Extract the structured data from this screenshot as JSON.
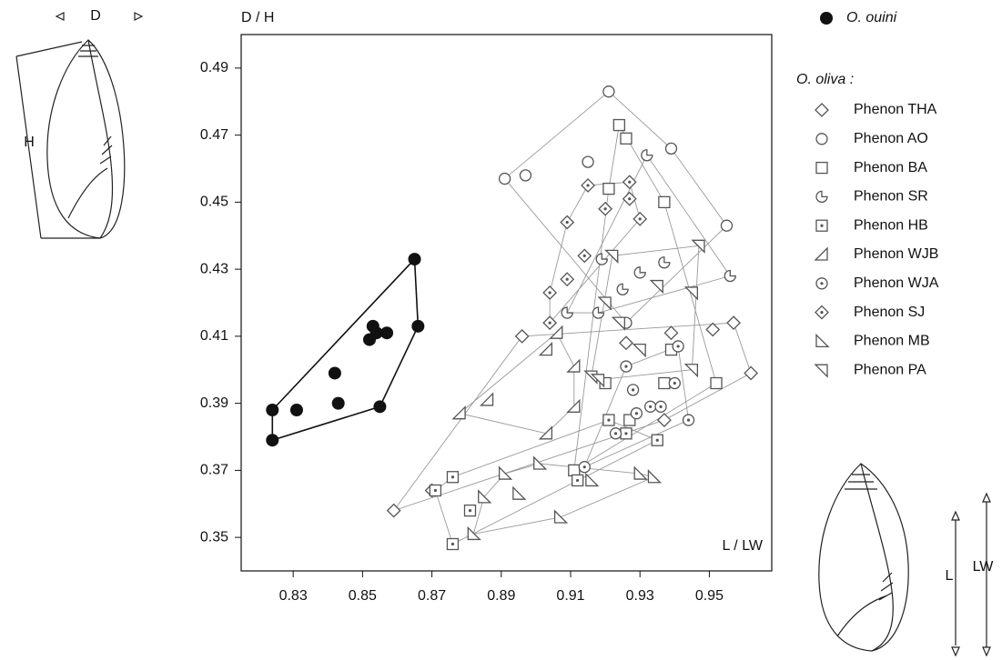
{
  "chart_data": {
    "type": "scatter",
    "y_label": "D / H",
    "x_label": "L / LW",
    "xlim": [
      0.815,
      0.968
    ],
    "ylim": [
      0.34,
      0.5
    ],
    "xticks": [
      0.83,
      0.85,
      0.87,
      0.89,
      0.91,
      0.93,
      0.95
    ],
    "yticks": [
      0.35,
      0.37,
      0.39,
      0.41,
      0.43,
      0.45,
      0.47,
      0.49
    ],
    "legend_group": "O. oliva :",
    "shell_labels": [
      "D",
      "H",
      "L",
      "LW"
    ],
    "series": [
      {
        "name": "O. ouini",
        "marker": "filled-circle",
        "color": "#111111",
        "x": [
          0.824,
          0.824,
          0.831,
          0.842,
          0.843,
          0.852,
          0.853,
          0.854,
          0.857,
          0.855,
          0.865,
          0.866
        ],
        "y": [
          0.388,
          0.379,
          0.388,
          0.399,
          0.39,
          0.409,
          0.413,
          0.411,
          0.411,
          0.389,
          0.433,
          0.413
        ]
      },
      {
        "name": "Phenon THA",
        "marker": "diamond",
        "color": "#555555",
        "x": [
          0.859,
          0.87,
          0.896,
          0.939,
          0.951,
          0.957,
          0.962,
          0.937,
          0.926
        ],
        "y": [
          0.358,
          0.364,
          0.41,
          0.411,
          0.412,
          0.414,
          0.399,
          0.385,
          0.408
        ]
      },
      {
        "name": "Phenon AO",
        "marker": "circle",
        "color": "#555555",
        "x": [
          0.891,
          0.897,
          0.921,
          0.915,
          0.939,
          0.955,
          0.926
        ],
        "y": [
          0.457,
          0.458,
          0.483,
          0.462,
          0.466,
          0.443,
          0.414
        ]
      },
      {
        "name": "Phenon BA",
        "marker": "square",
        "color": "#555555",
        "x": [
          0.924,
          0.926,
          0.921,
          0.937,
          0.939,
          0.952,
          0.937,
          0.92,
          0.927,
          0.911
        ],
        "y": [
          0.473,
          0.469,
          0.454,
          0.45,
          0.406,
          0.396,
          0.396,
          0.396,
          0.385,
          0.37
        ]
      },
      {
        "name": "Phenon SR",
        "marker": "pie",
        "color": "#555555",
        "x": [
          0.932,
          0.93,
          0.937,
          0.956,
          0.925,
          0.919,
          0.909,
          0.918
        ],
        "y": [
          0.464,
          0.429,
          0.432,
          0.428,
          0.424,
          0.433,
          0.417,
          0.417
        ]
      },
      {
        "name": "Phenon HB",
        "marker": "dot-square",
        "color": "#555555",
        "x": [
          0.876,
          0.871,
          0.876,
          0.881,
          0.912,
          0.921,
          0.926,
          0.935
        ],
        "y": [
          0.368,
          0.364,
          0.348,
          0.358,
          0.367,
          0.385,
          0.381,
          0.379
        ]
      },
      {
        "name": "Phenon WJB",
        "marker": "tri-wjb",
        "color": "#555555",
        "x": [
          0.878,
          0.886,
          0.903,
          0.903,
          0.906,
          0.911,
          0.911
        ],
        "y": [
          0.387,
          0.391,
          0.381,
          0.406,
          0.411,
          0.401,
          0.389
        ]
      },
      {
        "name": "Phenon WJA",
        "marker": "dot-circle",
        "color": "#555555",
        "x": [
          0.914,
          0.923,
          0.929,
          0.928,
          0.933,
          0.936,
          0.94,
          0.941,
          0.944,
          0.926
        ],
        "y": [
          0.371,
          0.381,
          0.387,
          0.394,
          0.389,
          0.389,
          0.396,
          0.407,
          0.385,
          0.401
        ]
      },
      {
        "name": "Phenon SJ",
        "marker": "dot-diamond",
        "color": "#555555",
        "x": [
          0.909,
          0.915,
          0.92,
          0.927,
          0.927,
          0.93,
          0.904,
          0.909,
          0.904,
          0.914
        ],
        "y": [
          0.444,
          0.455,
          0.448,
          0.456,
          0.451,
          0.445,
          0.423,
          0.427,
          0.414,
          0.434
        ]
      },
      {
        "name": "Phenon MB",
        "marker": "tri-mb",
        "color": "#555555",
        "x": [
          0.882,
          0.885,
          0.891,
          0.895,
          0.901,
          0.907,
          0.916,
          0.93,
          0.934
        ],
        "y": [
          0.351,
          0.362,
          0.369,
          0.363,
          0.372,
          0.356,
          0.367,
          0.369,
          0.368
        ]
      },
      {
        "name": "Phenon PA",
        "marker": "tri-pa",
        "color": "#555555",
        "x": [
          0.922,
          0.92,
          0.924,
          0.93,
          0.935,
          0.945,
          0.947,
          0.945,
          0.916,
          0.918
        ],
        "y": [
          0.434,
          0.42,
          0.414,
          0.406,
          0.425,
          0.423,
          0.437,
          0.4,
          0.398,
          0.397
        ]
      }
    ]
  }
}
